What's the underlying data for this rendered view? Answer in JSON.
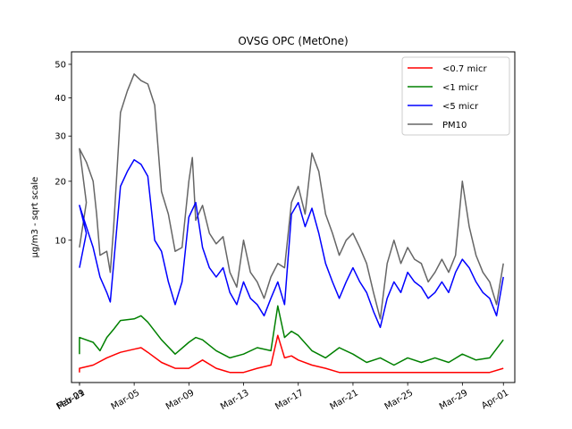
{
  "chart_data": {
    "type": "line",
    "title": "OVSG OPC (MetOne)",
    "ylabel": "µg/m3 - sqrt scale",
    "xlabel": "",
    "y_scale": "sqrt",
    "ylim": [
      0,
      54
    ],
    "y_ticks": [
      10,
      20,
      30,
      40,
      50
    ],
    "x_ticks": [
      {
        "date": "2019-02-29",
        "label": "Feb-29"
      },
      {
        "date": "2019-03-01",
        "label": "Mar-01"
      },
      {
        "date": "2019-03-05",
        "label": "Mar-05"
      },
      {
        "date": "2019-03-09",
        "label": "Mar-09"
      },
      {
        "date": "2019-03-13",
        "label": "Mar-13"
      },
      {
        "date": "2019-03-17",
        "label": "Mar-17"
      },
      {
        "date": "2019-03-21",
        "label": "Mar-21"
      },
      {
        "date": "2019-03-25",
        "label": "Mar-25"
      },
      {
        "date": "2019-03-29",
        "label": "Mar-29"
      },
      {
        "date": "2019-04-01",
        "label": "Apr-01"
      }
    ],
    "xlim": [
      "2019-02-28T10:00",
      "2019-04-01T20:00"
    ],
    "grid": false,
    "legend_position": "top-right",
    "series": [
      {
        "name": "<0.7 micr",
        "color": "#ff0000",
        "points": [
          [
            "2019-02-29T00:00",
            0.05
          ],
          [
            "2019-03-01T00:00",
            0.1
          ],
          [
            "2019-03-02T00:00",
            0.15
          ],
          [
            "2019-03-03T00:00",
            0.3
          ],
          [
            "2019-03-04T00:00",
            0.45
          ],
          [
            "2019-03-05T00:00",
            0.55
          ],
          [
            "2019-03-05T12:00",
            0.6
          ],
          [
            "2019-03-06T00:00",
            0.45
          ],
          [
            "2019-03-07T00:00",
            0.2
          ],
          [
            "2019-03-08T00:00",
            0.1
          ],
          [
            "2019-03-09T00:00",
            0.1
          ],
          [
            "2019-03-10T00:00",
            0.25
          ],
          [
            "2019-03-11T00:00",
            0.1
          ],
          [
            "2019-03-12T00:00",
            0.05
          ],
          [
            "2019-03-13T00:00",
            0.05
          ],
          [
            "2019-03-14T00:00",
            0.1
          ],
          [
            "2019-03-15T00:00",
            0.15
          ],
          [
            "2019-03-15T12:00",
            1.1
          ],
          [
            "2019-03-16T00:00",
            0.3
          ],
          [
            "2019-03-16T12:00",
            0.35
          ],
          [
            "2019-03-17T00:00",
            0.25
          ],
          [
            "2019-03-18T00:00",
            0.15
          ],
          [
            "2019-03-19T00:00",
            0.1
          ],
          [
            "2019-03-20T00:00",
            0.05
          ],
          [
            "2019-03-21T00:00",
            0.05
          ],
          [
            "2019-03-22T00:00",
            0.05
          ],
          [
            "2019-03-23T00:00",
            0.05
          ],
          [
            "2019-03-24T00:00",
            0.05
          ],
          [
            "2019-03-25T00:00",
            0.05
          ],
          [
            "2019-03-26T00:00",
            0.05
          ],
          [
            "2019-03-27T00:00",
            0.05
          ],
          [
            "2019-03-28T00:00",
            0.05
          ],
          [
            "2019-03-29T00:00",
            0.05
          ],
          [
            "2019-03-30T00:00",
            0.05
          ],
          [
            "2019-03-31T00:00",
            0.05
          ],
          [
            "2019-04-01T00:00",
            0.1
          ]
        ]
      },
      {
        "name": "<1 micr",
        "color": "#008000",
        "points": [
          [
            "2019-02-29T00:00",
            0.4
          ],
          [
            "2019-03-01T00:00",
            1.0
          ],
          [
            "2019-03-02T00:00",
            0.8
          ],
          [
            "2019-03-02T12:00",
            0.5
          ],
          [
            "2019-03-03T00:00",
            1.0
          ],
          [
            "2019-03-03T12:00",
            1.4
          ],
          [
            "2019-03-04T00:00",
            1.9
          ],
          [
            "2019-03-05T00:00",
            2.0
          ],
          [
            "2019-03-05T12:00",
            2.2
          ],
          [
            "2019-03-06T00:00",
            1.8
          ],
          [
            "2019-03-07T00:00",
            0.9
          ],
          [
            "2019-03-08T00:00",
            0.4
          ],
          [
            "2019-03-09T00:00",
            0.8
          ],
          [
            "2019-03-09T12:00",
            1.0
          ],
          [
            "2019-03-10T00:00",
            0.9
          ],
          [
            "2019-03-11T00:00",
            0.5
          ],
          [
            "2019-03-12T00:00",
            0.3
          ],
          [
            "2019-03-13T00:00",
            0.4
          ],
          [
            "2019-03-14T00:00",
            0.6
          ],
          [
            "2019-03-15T00:00",
            0.5
          ],
          [
            "2019-03-15T12:00",
            2.9
          ],
          [
            "2019-03-16T00:00",
            1.0
          ],
          [
            "2019-03-16T12:00",
            1.3
          ],
          [
            "2019-03-17T00:00",
            1.1
          ],
          [
            "2019-03-18T00:00",
            0.5
          ],
          [
            "2019-03-19T00:00",
            0.3
          ],
          [
            "2019-03-20T00:00",
            0.6
          ],
          [
            "2019-03-21T00:00",
            0.4
          ],
          [
            "2019-03-22T00:00",
            0.2
          ],
          [
            "2019-03-23T00:00",
            0.3
          ],
          [
            "2019-03-24T00:00",
            0.15
          ],
          [
            "2019-03-25T00:00",
            0.3
          ],
          [
            "2019-03-26T00:00",
            0.2
          ],
          [
            "2019-03-27T00:00",
            0.3
          ],
          [
            "2019-03-28T00:00",
            0.2
          ],
          [
            "2019-03-29T00:00",
            0.4
          ],
          [
            "2019-03-30T00:00",
            0.25
          ],
          [
            "2019-03-31T00:00",
            0.3
          ],
          [
            "2019-04-01T00:00",
            0.9
          ]
        ]
      },
      {
        "name": "<5 micr",
        "color": "#0000ff",
        "points": [
          [
            "2019-02-29T00:00",
            6.5
          ],
          [
            "2019-02-29T12:00",
            11.0
          ],
          [
            "2019-03-01T00:00",
            15.5
          ],
          [
            "2019-03-01T12:00",
            12.0
          ],
          [
            "2019-03-02T00:00",
            9.0
          ],
          [
            "2019-03-02T12:00",
            5.5
          ],
          [
            "2019-03-03T00:00",
            4.0
          ],
          [
            "2019-03-03T06:00",
            3.2
          ],
          [
            "2019-03-03T12:00",
            7.0
          ],
          [
            "2019-03-04T00:00",
            19.0
          ],
          [
            "2019-03-04T12:00",
            22.0
          ],
          [
            "2019-03-05T00:00",
            24.5
          ],
          [
            "2019-03-05T12:00",
            23.5
          ],
          [
            "2019-03-06T00:00",
            21.0
          ],
          [
            "2019-03-06T12:00",
            10.0
          ],
          [
            "2019-03-07T00:00",
            8.5
          ],
          [
            "2019-03-07T12:00",
            5.0
          ],
          [
            "2019-03-08T00:00",
            3.0
          ],
          [
            "2019-03-08T12:00",
            5.0
          ],
          [
            "2019-03-09T00:00",
            13.5
          ],
          [
            "2019-03-09T12:00",
            16.0
          ],
          [
            "2019-03-10T00:00",
            9.0
          ],
          [
            "2019-03-10T12:00",
            6.5
          ],
          [
            "2019-03-11T00:00",
            5.5
          ],
          [
            "2019-03-11T12:00",
            6.5
          ],
          [
            "2019-03-12T00:00",
            4.0
          ],
          [
            "2019-03-12T12:00",
            3.0
          ],
          [
            "2019-03-13T00:00",
            5.0
          ],
          [
            "2019-03-13T12:00",
            3.5
          ],
          [
            "2019-03-14T00:00",
            3.0
          ],
          [
            "2019-03-14T12:00",
            2.2
          ],
          [
            "2019-03-15T00:00",
            3.5
          ],
          [
            "2019-03-15T12:00",
            5.0
          ],
          [
            "2019-03-16T00:00",
            3.0
          ],
          [
            "2019-03-16T12:00",
            14.0
          ],
          [
            "2019-03-17T00:00",
            16.0
          ],
          [
            "2019-03-17T12:00",
            12.0
          ],
          [
            "2019-03-18T00:00",
            15.0
          ],
          [
            "2019-03-18T12:00",
            11.0
          ],
          [
            "2019-03-19T00:00",
            7.0
          ],
          [
            "2019-03-19T12:00",
            5.0
          ],
          [
            "2019-03-20T00:00",
            3.5
          ],
          [
            "2019-03-20T12:00",
            5.0
          ],
          [
            "2019-03-21T00:00",
            6.5
          ],
          [
            "2019-03-21T12:00",
            5.0
          ],
          [
            "2019-03-22T00:00",
            4.0
          ],
          [
            "2019-03-22T12:00",
            2.5
          ],
          [
            "2019-03-23T00:00",
            1.5
          ],
          [
            "2019-03-23T12:00",
            3.5
          ],
          [
            "2019-03-24T00:00",
            5.0
          ],
          [
            "2019-03-24T12:00",
            4.0
          ],
          [
            "2019-03-25T00:00",
            6.0
          ],
          [
            "2019-03-25T12:00",
            5.0
          ],
          [
            "2019-03-26T00:00",
            4.5
          ],
          [
            "2019-03-26T12:00",
            3.5
          ],
          [
            "2019-03-27T00:00",
            4.0
          ],
          [
            "2019-03-27T12:00",
            5.0
          ],
          [
            "2019-03-28T00:00",
            4.0
          ],
          [
            "2019-03-28T12:00",
            6.0
          ],
          [
            "2019-03-29T00:00",
            7.5
          ],
          [
            "2019-03-29T12:00",
            6.5
          ],
          [
            "2019-03-30T00:00",
            5.0
          ],
          [
            "2019-03-30T12:00",
            4.0
          ],
          [
            "2019-03-31T00:00",
            3.5
          ],
          [
            "2019-03-31T12:00",
            2.2
          ],
          [
            "2019-04-01T00:00",
            5.5
          ]
        ]
      },
      {
        "name": "PM10",
        "color": "#666666",
        "points": [
          [
            "2019-02-29T00:00",
            9.0
          ],
          [
            "2019-02-29T12:00",
            16.0
          ],
          [
            "2019-03-01T00:00",
            27.0
          ],
          [
            "2019-03-01T12:00",
            24.0
          ],
          [
            "2019-03-02T00:00",
            20.0
          ],
          [
            "2019-03-02T06:00",
            14.0
          ],
          [
            "2019-03-02T12:00",
            8.0
          ],
          [
            "2019-03-03T00:00",
            8.5
          ],
          [
            "2019-03-03T06:00",
            6.0
          ],
          [
            "2019-03-03T12:00",
            12.0
          ],
          [
            "2019-03-04T00:00",
            36.0
          ],
          [
            "2019-03-04T12:00",
            42.0
          ],
          [
            "2019-03-05T00:00",
            47.0
          ],
          [
            "2019-03-05T12:00",
            45.0
          ],
          [
            "2019-03-06T00:00",
            44.0
          ],
          [
            "2019-03-06T12:00",
            38.0
          ],
          [
            "2019-03-07T00:00",
            18.0
          ],
          [
            "2019-03-07T12:00",
            14.0
          ],
          [
            "2019-03-08T00:00",
            8.5
          ],
          [
            "2019-03-08T12:00",
            9.0
          ],
          [
            "2019-03-09T00:00",
            20.0
          ],
          [
            "2019-03-09T06:00",
            25.0
          ],
          [
            "2019-03-09T12:00",
            13.0
          ],
          [
            "2019-03-10T00:00",
            15.5
          ],
          [
            "2019-03-10T12:00",
            11.0
          ],
          [
            "2019-03-11T00:00",
            9.5
          ],
          [
            "2019-03-11T12:00",
            10.5
          ],
          [
            "2019-03-12T00:00",
            6.0
          ],
          [
            "2019-03-12T12:00",
            4.5
          ],
          [
            "2019-03-13T00:00",
            10.0
          ],
          [
            "2019-03-13T12:00",
            6.0
          ],
          [
            "2019-03-14T00:00",
            5.0
          ],
          [
            "2019-03-14T12:00",
            3.5
          ],
          [
            "2019-03-15T00:00",
            5.5
          ],
          [
            "2019-03-15T12:00",
            7.0
          ],
          [
            "2019-03-16T00:00",
            6.5
          ],
          [
            "2019-03-16T12:00",
            16.0
          ],
          [
            "2019-03-17T00:00",
            19.0
          ],
          [
            "2019-03-17T12:00",
            14.0
          ],
          [
            "2019-03-18T00:00",
            26.0
          ],
          [
            "2019-03-18T12:00",
            22.0
          ],
          [
            "2019-03-19T00:00",
            14.0
          ],
          [
            "2019-03-19T12:00",
            11.0
          ],
          [
            "2019-03-20T00:00",
            8.0
          ],
          [
            "2019-03-20T12:00",
            10.0
          ],
          [
            "2019-03-21T00:00",
            11.0
          ],
          [
            "2019-03-21T12:00",
            9.0
          ],
          [
            "2019-03-22T00:00",
            7.0
          ],
          [
            "2019-03-22T12:00",
            4.0
          ],
          [
            "2019-03-23T00:00",
            2.0
          ],
          [
            "2019-03-23T12:00",
            7.0
          ],
          [
            "2019-03-24T00:00",
            10.0
          ],
          [
            "2019-03-24T12:00",
            7.0
          ],
          [
            "2019-03-25T00:00",
            9.0
          ],
          [
            "2019-03-25T12:00",
            7.5
          ],
          [
            "2019-03-26T00:00",
            7.0
          ],
          [
            "2019-03-26T12:00",
            5.0
          ],
          [
            "2019-03-27T00:00",
            6.0
          ],
          [
            "2019-03-27T12:00",
            7.5
          ],
          [
            "2019-03-28T00:00",
            6.0
          ],
          [
            "2019-03-28T12:00",
            8.0
          ],
          [
            "2019-03-29T00:00",
            20.0
          ],
          [
            "2019-03-29T12:00",
            12.0
          ],
          [
            "2019-03-30T00:00",
            8.0
          ],
          [
            "2019-03-30T12:00",
            6.0
          ],
          [
            "2019-03-31T00:00",
            5.0
          ],
          [
            "2019-03-31T12:00",
            3.0
          ],
          [
            "2019-04-01T00:00",
            7.0
          ]
        ]
      }
    ]
  }
}
